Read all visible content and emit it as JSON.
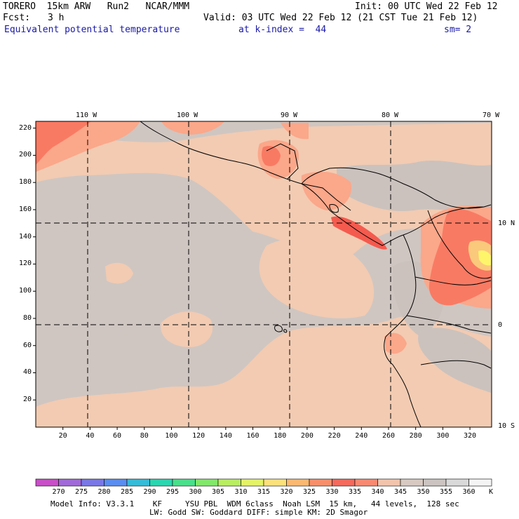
{
  "header": {
    "model": "TORERO  15km ARW   Run2   NCAR/MMM",
    "init": "Init: 00 UTC Wed 22 Feb 12",
    "fcst_label": "Fcst:",
    "fcst_value": "3 h",
    "valid": "Valid: 03 UTC Wed 22 Feb 12 (21 CST Tue 21 Feb 12)",
    "field": "Equivalent potential temperature",
    "level": "at k-index =  44",
    "smoothing": "sm= 2"
  },
  "map": {
    "top_lon_labels": [
      "110 W",
      "100 W",
      "90 W",
      "80 W",
      "70 W"
    ],
    "right_lat_labels": [
      "10 N",
      "0",
      "10 S"
    ],
    "y_ticks": [
      "220",
      "200",
      "180",
      "160",
      "140",
      "120",
      "100",
      "80",
      "60",
      "40",
      "20"
    ],
    "x_ticks": [
      "20",
      "40",
      "60",
      "80",
      "100",
      "120",
      "140",
      "160",
      "180",
      "200",
      "220",
      "240",
      "260",
      "280",
      "300",
      "320"
    ],
    "colors": {
      "background": "#cfc6c1",
      "c340": "#f2cbb2",
      "c335": "#fba78a",
      "c330": "#f97a63",
      "c325": "#f55a4e",
      "c320": "#fbc97b",
      "c315": "#fff56b",
      "grid": "#000000"
    }
  },
  "colorbar": {
    "levels": [
      "270",
      "275",
      "280",
      "285",
      "290",
      "295",
      "300",
      "305",
      "310",
      "315",
      "320",
      "325",
      "330",
      "335",
      "340",
      "345",
      "350",
      "355",
      "360"
    ],
    "unit": "K",
    "colors": [
      "#c84fc8",
      "#a06ad8",
      "#7a78e6",
      "#5a8ef0",
      "#35bcd8",
      "#2ad6b0",
      "#48e08a",
      "#82e86a",
      "#b8ee60",
      "#e4f266",
      "#fce07a",
      "#fbb870",
      "#f7906a",
      "#f46a5c",
      "#f98a72",
      "#f2c4ac",
      "#d8cac2",
      "#cbc4c0",
      "#d9d9d9",
      "#f4f4f4"
    ]
  },
  "footer": {
    "line1": "Model Info: V3.3.1    KF     YSU PBL  WDM 6class  Noah LSM  15 km,   44 levels,  128 sec",
    "line2": "LW: Godd SW: Goddard DIFF: simple KM: 2D Smagor"
  }
}
